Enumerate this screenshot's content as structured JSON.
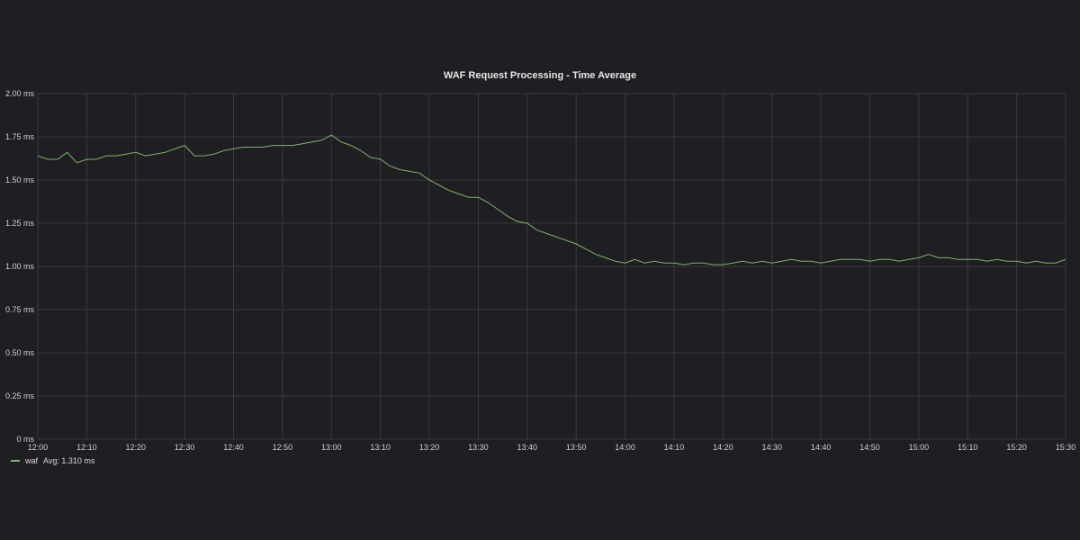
{
  "panel": {
    "title": "WAF Request Processing - Time Average"
  },
  "legend": {
    "series_name": "waf",
    "avg_text": "Avg: 1.310 ms"
  },
  "colors": {
    "background": "#1f1f23",
    "grid": "#3a3a3f",
    "series": "#7eb26d",
    "text": "#cfcfcf"
  },
  "chart_data": {
    "type": "line",
    "title": "WAF Request Processing - Time Average",
    "xlabel": "",
    "ylabel": "",
    "x_range": [
      "12:00",
      "15:30"
    ],
    "ylim": [
      0,
      2.0
    ],
    "y_ticks": [
      0,
      0.25,
      0.5,
      0.75,
      1.0,
      1.25,
      1.5,
      1.75,
      2.0
    ],
    "y_tick_labels": [
      "0 ms",
      "0.25 ms",
      "0.50 ms",
      "0.75 ms",
      "1.00 ms",
      "1.25 ms",
      "1.50 ms",
      "1.75 ms",
      "2.00 ms"
    ],
    "x_tick_labels": [
      "12:00",
      "12:10",
      "12:20",
      "12:30",
      "12:40",
      "12:50",
      "13:00",
      "13:10",
      "13:20",
      "13:30",
      "13:40",
      "13:50",
      "14:00",
      "14:10",
      "14:20",
      "14:30",
      "14:40",
      "14:50",
      "15:00",
      "15:10",
      "15:20",
      "15:30"
    ],
    "grid": true,
    "legend_position": "bottom-left",
    "series": [
      {
        "name": "waf",
        "x": [
          "12:00",
          "12:02",
          "12:04",
          "12:06",
          "12:08",
          "12:10",
          "12:12",
          "12:14",
          "12:16",
          "12:18",
          "12:20",
          "12:22",
          "12:24",
          "12:26",
          "12:28",
          "12:30",
          "12:32",
          "12:34",
          "12:36",
          "12:38",
          "12:40",
          "12:42",
          "12:44",
          "12:46",
          "12:48",
          "12:50",
          "12:52",
          "12:54",
          "12:56",
          "12:58",
          "13:00",
          "13:02",
          "13:04",
          "13:06",
          "13:08",
          "13:10",
          "13:12",
          "13:14",
          "13:16",
          "13:18",
          "13:20",
          "13:22",
          "13:24",
          "13:26",
          "13:28",
          "13:30",
          "13:32",
          "13:34",
          "13:36",
          "13:38",
          "13:40",
          "13:42",
          "13:44",
          "13:46",
          "13:48",
          "13:50",
          "13:52",
          "13:54",
          "13:56",
          "13:58",
          "14:00",
          "14:02",
          "14:04",
          "14:06",
          "14:08",
          "14:10",
          "14:12",
          "14:14",
          "14:16",
          "14:18",
          "14:20",
          "14:22",
          "14:24",
          "14:26",
          "14:28",
          "14:30",
          "14:32",
          "14:34",
          "14:36",
          "14:38",
          "14:40",
          "14:42",
          "14:44",
          "14:46",
          "14:48",
          "14:50",
          "14:52",
          "14:54",
          "14:56",
          "14:58",
          "15:00",
          "15:02",
          "15:04",
          "15:06",
          "15:08",
          "15:10",
          "15:12",
          "15:14",
          "15:16",
          "15:18",
          "15:20",
          "15:22",
          "15:24",
          "15:26",
          "15:28",
          "15:30"
        ],
        "values": [
          1.64,
          1.62,
          1.62,
          1.66,
          1.6,
          1.62,
          1.62,
          1.64,
          1.64,
          1.65,
          1.66,
          1.64,
          1.65,
          1.66,
          1.68,
          1.7,
          1.64,
          1.64,
          1.65,
          1.67,
          1.68,
          1.69,
          1.69,
          1.69,
          1.7,
          1.7,
          1.7,
          1.71,
          1.72,
          1.73,
          1.76,
          1.72,
          1.7,
          1.67,
          1.63,
          1.62,
          1.58,
          1.56,
          1.55,
          1.54,
          1.5,
          1.47,
          1.44,
          1.42,
          1.4,
          1.4,
          1.37,
          1.33,
          1.29,
          1.26,
          1.25,
          1.21,
          1.19,
          1.17,
          1.15,
          1.13,
          1.1,
          1.07,
          1.05,
          1.03,
          1.02,
          1.04,
          1.02,
          1.03,
          1.02,
          1.02,
          1.01,
          1.02,
          1.02,
          1.01,
          1.01,
          1.02,
          1.03,
          1.02,
          1.03,
          1.02,
          1.03,
          1.04,
          1.03,
          1.03,
          1.02,
          1.03,
          1.04,
          1.04,
          1.04,
          1.03,
          1.04,
          1.04,
          1.03,
          1.04,
          1.05,
          1.07,
          1.05,
          1.05,
          1.04,
          1.04,
          1.04,
          1.03,
          1.04,
          1.03,
          1.03,
          1.02,
          1.03,
          1.02,
          1.02,
          1.04
        ]
      }
    ]
  }
}
